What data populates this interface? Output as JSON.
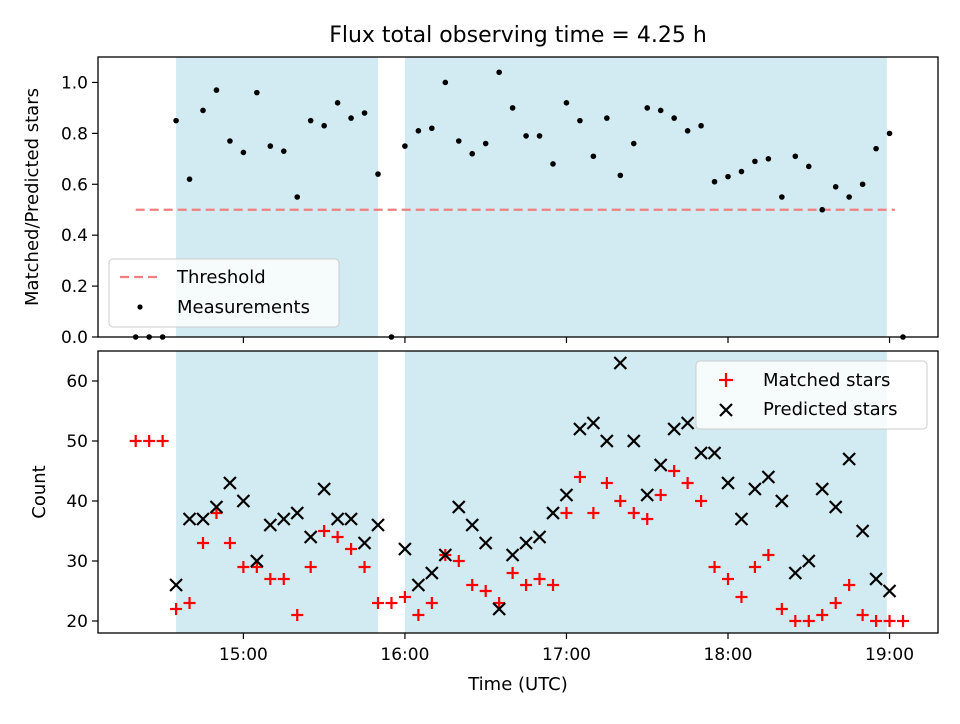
{
  "title": "Flux total observing time = 4.25 h",
  "colors": {
    "band": "#add8e6",
    "threshold": "#f08080",
    "measurement": "#000000",
    "matched": "#ff0000",
    "predicted": "#000000"
  },
  "chart_data": [
    {
      "type": "scatter",
      "panel": "top",
      "title": "Flux total observing time = 4.25 h",
      "xlabel": "",
      "ylabel": "Matched/Predicted stars",
      "xlim": [
        "14:06",
        "19:18"
      ],
      "ylim": [
        0,
        1.1
      ],
      "yticks": [
        "0.0",
        "0.2",
        "0.4",
        "0.6",
        "0.8",
        "1.0"
      ],
      "xticks": [
        "15:00",
        "16:00",
        "17:00",
        "18:00",
        "19:00"
      ],
      "x_unit": "time (UTC)",
      "shaded_intervals": [
        [
          "14:35",
          "15:50"
        ],
        [
          "16:00",
          "18:59"
        ]
      ],
      "threshold": {
        "value": 0.5,
        "x_range": [
          "14:20",
          "19:02"
        ]
      },
      "legend": {
        "position": "lower-left",
        "entries": [
          "Threshold",
          "Measurements"
        ]
      },
      "series": [
        {
          "name": "Measurements",
          "marker": "dot",
          "x": [
            "14:20",
            "14:25",
            "14:30",
            "14:35",
            "14:40",
            "14:45",
            "14:50",
            "14:55",
            "15:00",
            "15:05",
            "15:10",
            "15:15",
            "15:20",
            "15:25",
            "15:30",
            "15:35",
            "15:40",
            "15:45",
            "15:50",
            "15:55",
            "16:00",
            "16:05",
            "16:10",
            "16:15",
            "16:20",
            "16:25",
            "16:30",
            "16:35",
            "16:40",
            "16:45",
            "16:50",
            "16:55",
            "17:00",
            "17:05",
            "17:10",
            "17:15",
            "17:20",
            "17:25",
            "17:30",
            "17:35",
            "17:40",
            "17:45",
            "17:50",
            "17:55",
            "18:00",
            "18:05",
            "18:10",
            "18:15",
            "18:20",
            "18:25",
            "18:30",
            "18:35",
            "18:40",
            "18:45",
            "18:50",
            "18:55",
            "19:00",
            "19:05"
          ],
          "values": [
            0.0,
            0.0,
            0.0,
            0.85,
            0.62,
            0.89,
            0.97,
            0.77,
            0.725,
            0.96,
            0.75,
            0.73,
            0.55,
            0.85,
            0.83,
            0.92,
            0.86,
            0.88,
            0.64,
            0.0,
            0.75,
            0.81,
            0.82,
            1.0,
            0.77,
            0.72,
            0.76,
            1.04,
            0.9,
            0.79,
            0.79,
            0.68,
            0.92,
            0.85,
            0.71,
            0.86,
            0.635,
            0.76,
            0.9,
            0.89,
            0.86,
            0.81,
            0.83,
            0.61,
            0.63,
            0.65,
            0.69,
            0.7,
            0.55,
            0.71,
            0.67,
            0.5,
            0.59,
            0.55,
            0.6,
            0.74,
            0.8,
            0.0
          ]
        }
      ]
    },
    {
      "type": "scatter",
      "panel": "bottom",
      "xlabel": "Time (UTC)",
      "ylabel": "Count",
      "xlim": [
        "14:06",
        "19:18"
      ],
      "ylim": [
        18,
        65
      ],
      "yticks": [
        "20",
        "30",
        "40",
        "50",
        "60"
      ],
      "xticks": [
        "15:00",
        "16:00",
        "17:00",
        "18:00",
        "19:00"
      ],
      "shaded_intervals": [
        [
          "14:35",
          "15:50"
        ],
        [
          "16:00",
          "18:59"
        ]
      ],
      "legend": {
        "position": "upper-right",
        "entries": [
          "Matched stars",
          "Predicted stars"
        ]
      },
      "series": [
        {
          "name": "Matched stars",
          "marker": "plus",
          "x": [
            "14:20",
            "14:25",
            "14:30",
            "14:35",
            "14:40",
            "14:45",
            "14:50",
            "14:55",
            "15:00",
            "15:05",
            "15:10",
            "15:15",
            "15:20",
            "15:25",
            "15:30",
            "15:35",
            "15:40",
            "15:45",
            "15:50",
            "15:55",
            "16:00",
            "16:05",
            "16:10",
            "16:15",
            "16:20",
            "16:25",
            "16:30",
            "16:35",
            "16:40",
            "16:45",
            "16:50",
            "16:55",
            "17:00",
            "17:05",
            "17:10",
            "17:15",
            "17:20",
            "17:25",
            "17:30",
            "17:35",
            "17:40",
            "17:45",
            "17:50",
            "17:55",
            "18:00",
            "18:05",
            "18:10",
            "18:15",
            "18:20",
            "18:25",
            "18:30",
            "18:35",
            "18:40",
            "18:45",
            "18:50",
            "18:55",
            "19:00",
            "19:05"
          ],
          "values": [
            50,
            50,
            50,
            22,
            23,
            33,
            38,
            33,
            29,
            29,
            27,
            27,
            21,
            29,
            35,
            34,
            32,
            29,
            23,
            23,
            24,
            21,
            23,
            31,
            30,
            26,
            25,
            23,
            28,
            26,
            27,
            26,
            38,
            44,
            38,
            43,
            40,
            38,
            37,
            41,
            45,
            43,
            40,
            29,
            27,
            24,
            29,
            31,
            22,
            20,
            20,
            21,
            23,
            26,
            21,
            20,
            20,
            20
          ]
        },
        {
          "name": "Predicted stars",
          "marker": "x",
          "x": [
            "14:35",
            "14:40",
            "14:45",
            "14:50",
            "14:55",
            "15:00",
            "15:05",
            "15:10",
            "15:15",
            "15:20",
            "15:25",
            "15:30",
            "15:35",
            "15:40",
            "15:45",
            "15:50",
            "16:00",
            "16:05",
            "16:10",
            "16:15",
            "16:20",
            "16:25",
            "16:30",
            "16:35",
            "16:40",
            "16:45",
            "16:50",
            "16:55",
            "17:00",
            "17:05",
            "17:10",
            "17:15",
            "17:20",
            "17:25",
            "17:30",
            "17:35",
            "17:40",
            "17:45",
            "17:50",
            "17:55",
            "18:00",
            "18:05",
            "18:10",
            "18:15",
            "18:20",
            "18:25",
            "18:30",
            "18:35",
            "18:40",
            "18:45",
            "18:50",
            "18:55",
            "19:00"
          ],
          "values": [
            26,
            37,
            37,
            39,
            43,
            40,
            30,
            36,
            37,
            38,
            34,
            42,
            37,
            37,
            33,
            36,
            32,
            26,
            28,
            31,
            39,
            36,
            33,
            22,
            31,
            33,
            34,
            38,
            41,
            52,
            53,
            50,
            63,
            50,
            41,
            46,
            52,
            53,
            48,
            48,
            43,
            37,
            42,
            44,
            40,
            28,
            30,
            42,
            39,
            47,
            35,
            27,
            25
          ]
        }
      ]
    }
  ]
}
